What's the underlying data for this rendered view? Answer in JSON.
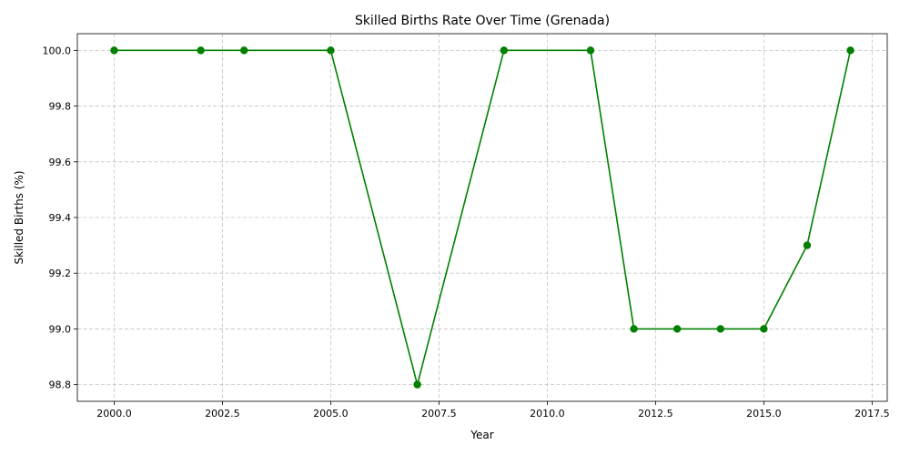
{
  "chart_data": {
    "type": "line",
    "title": "Skilled Births Rate Over Time (Grenada)",
    "xlabel": "Year",
    "ylabel": "Skilled Births (%)",
    "xlim": [
      1999.15,
      2017.85
    ],
    "ylim": [
      98.74,
      100.06
    ],
    "xticks": [
      2000.0,
      2002.5,
      2005.0,
      2007.5,
      2010.0,
      2012.5,
      2015.0,
      2017.5
    ],
    "xtick_labels": [
      "2000.0",
      "2002.5",
      "2005.0",
      "2007.5",
      "2010.0",
      "2012.5",
      "2015.0",
      "2017.5"
    ],
    "yticks": [
      98.8,
      99.0,
      99.2,
      99.4,
      99.6,
      99.8,
      100.0
    ],
    "ytick_labels": [
      "98.8",
      "99.0",
      "99.2",
      "99.4",
      "99.6",
      "99.8",
      "100.0"
    ],
    "grid": true,
    "series": [
      {
        "color": "#008000",
        "marker": "circle",
        "x": [
          2000,
          2002,
          2003,
          2005,
          2007,
          2009,
          2011,
          2012,
          2013,
          2014,
          2015,
          2016,
          2017
        ],
        "y": [
          100.0,
          100.0,
          100.0,
          100.0,
          98.8,
          100.0,
          100.0,
          99.0,
          99.0,
          99.0,
          99.0,
          99.3,
          100.0
        ]
      }
    ]
  }
}
